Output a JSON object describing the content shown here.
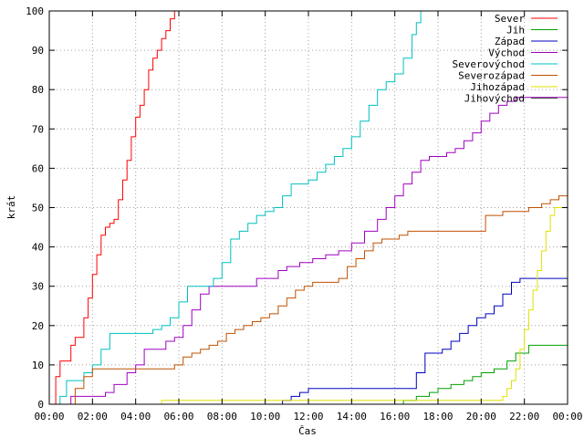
{
  "chart_data": {
    "type": "line",
    "xlabel": "Čas",
    "ylabel": "krát",
    "xlim": [
      0,
      24
    ],
    "ylim": [
      0,
      100
    ],
    "grid": true,
    "legend_position": "top-right",
    "x_ticks": [
      {
        "value": 0,
        "label": "00:00"
      },
      {
        "value": 2,
        "label": "02:00"
      },
      {
        "value": 4,
        "label": "04:00"
      },
      {
        "value": 6,
        "label": "06:00"
      },
      {
        "value": 8,
        "label": "08:00"
      },
      {
        "value": 10,
        "label": "10:00"
      },
      {
        "value": 12,
        "label": "12:00"
      },
      {
        "value": 14,
        "label": "14:00"
      },
      {
        "value": 16,
        "label": "16:00"
      },
      {
        "value": 18,
        "label": "18:00"
      },
      {
        "value": 20,
        "label": "20:00"
      },
      {
        "value": 22,
        "label": "22:00"
      },
      {
        "value": 24,
        "label": "00:00"
      }
    ],
    "y_ticks": [
      0,
      10,
      20,
      30,
      40,
      50,
      60,
      70,
      80,
      90,
      100
    ],
    "series": [
      {
        "name": "Sever",
        "color": "#ff0000",
        "x": [
          0,
          0.3,
          0.5,
          0.8,
          1.0,
          1.2,
          1.4,
          1.6,
          1.8,
          2.0,
          2.2,
          2.4,
          2.6,
          2.8,
          3.0,
          3.2,
          3.4,
          3.6,
          3.8,
          4.0,
          4.2,
          4.4,
          4.6,
          4.8,
          5.0,
          5.2,
          5.4,
          5.6,
          5.8
        ],
        "y": [
          0,
          7,
          11,
          11,
          15,
          17,
          17,
          22,
          27,
          33,
          38,
          43,
          45,
          46,
          47,
          52,
          57,
          62,
          68,
          73,
          76,
          80,
          85,
          88,
          90,
          93,
          95,
          98,
          100
        ]
      },
      {
        "name": "Jih",
        "color": "#00a000",
        "x": [
          0,
          16.2,
          16.4,
          17.0,
          17.6,
          18.0,
          18.6,
          19.2,
          19.6,
          20.0,
          20.6,
          21.2,
          21.6,
          22.2,
          23.0,
          24.0
        ],
        "y": [
          0,
          0,
          1,
          2,
          3,
          4,
          5,
          6,
          7,
          8,
          9,
          11,
          13,
          15,
          15,
          15
        ]
      },
      {
        "name": "Západ",
        "color": "#0000c0",
        "x": [
          0,
          10.6,
          10.8,
          11.2,
          11.6,
          12.0,
          13.0,
          14.0,
          15.0,
          16.0,
          16.8,
          17.0,
          17.4,
          17.8,
          18.2,
          18.6,
          19.0,
          19.4,
          19.8,
          20.2,
          20.6,
          21.0,
          21.4,
          21.8,
          22.4,
          24.0
        ],
        "y": [
          0,
          0,
          1,
          2,
          3,
          4,
          4,
          4,
          4,
          4,
          4,
          8,
          13,
          13,
          14,
          16,
          18,
          20,
          22,
          23,
          25,
          28,
          31,
          32,
          32,
          32
        ]
      },
      {
        "name": "Východ",
        "color": "#a000c0",
        "x": [
          0,
          0.8,
          1.0,
          2.0,
          2.6,
          3.0,
          3.6,
          4.0,
          4.4,
          5.0,
          5.4,
          5.8,
          6.2,
          6.6,
          7.0,
          7.4,
          7.8,
          8.4,
          9.0,
          9.6,
          10.0,
          10.6,
          11.0,
          11.6,
          12.2,
          12.8,
          13.4,
          14.0,
          14.6,
          15.2,
          15.6,
          16.0,
          16.4,
          16.8,
          17.2,
          17.6,
          18.0,
          18.4,
          18.8,
          19.2,
          19.6,
          20.0,
          20.4,
          20.8,
          21.2,
          21.6,
          22.0,
          22.4,
          22.8,
          23.2,
          23.6,
          24.0
        ],
        "y": [
          0,
          0,
          2,
          2,
          3,
          5,
          8,
          10,
          14,
          14,
          16,
          17,
          20,
          24,
          28,
          30,
          30,
          30,
          30,
          32,
          32,
          34,
          35,
          36,
          37,
          38,
          39,
          41,
          44,
          47,
          50,
          53,
          56,
          59,
          62,
          63,
          63,
          64,
          65,
          67,
          69,
          72,
          74,
          76,
          77,
          78,
          78,
          78,
          78,
          78,
          78,
          82
        ]
      },
      {
        "name": "Severovýchod",
        "color": "#00c0c0",
        "x": [
          0,
          0.5,
          0.8,
          1.2,
          1.6,
          2.0,
          2.4,
          2.8,
          3.2,
          3.6,
          4.0,
          4.4,
          4.8,
          5.2,
          5.6,
          6.0,
          6.4,
          6.8,
          7.2,
          7.6,
          8.0,
          8.4,
          8.8,
          9.2,
          9.6,
          10.0,
          10.4,
          10.8,
          11.2,
          11.6,
          12.0,
          12.4,
          12.8,
          13.2,
          13.6,
          14.0,
          14.4,
          14.8,
          15.2,
          15.6,
          16.0,
          16.4,
          16.8,
          17.0,
          17.2
        ],
        "y": [
          0,
          2,
          6,
          6,
          8,
          10,
          14,
          18,
          18,
          18,
          18,
          18,
          19,
          20,
          22,
          26,
          30,
          30,
          30,
          32,
          36,
          42,
          44,
          46,
          48,
          49,
          50,
          53,
          56,
          56,
          57,
          59,
          61,
          63,
          65,
          68,
          72,
          76,
          80,
          82,
          84,
          88,
          94,
          97,
          100
        ]
      },
      {
        "name": "Severozápad",
        "color": "#c05000",
        "x": [
          0,
          0.9,
          1.2,
          1.6,
          2.0,
          3.0,
          4.0,
          5.0,
          5.8,
          6.2,
          6.6,
          7.0,
          7.4,
          7.8,
          8.2,
          8.6,
          9.0,
          9.4,
          9.8,
          10.2,
          10.6,
          11.0,
          11.4,
          11.8,
          12.2,
          12.6,
          13.0,
          13.4,
          13.8,
          14.2,
          14.6,
          15.0,
          15.4,
          15.8,
          16.2,
          16.6,
          17.0,
          17.6,
          18.2,
          18.8,
          19.4,
          20.0,
          20.2,
          21.0,
          21.6,
          22.2,
          22.8,
          23.2,
          23.6,
          24.0
        ],
        "y": [
          0,
          0,
          4,
          7,
          9,
          9,
          9,
          9,
          10,
          12,
          13,
          14,
          15,
          16,
          18,
          19,
          20,
          21,
          22,
          23,
          25,
          27,
          29,
          30,
          31,
          31,
          31,
          32,
          35,
          37,
          39,
          41,
          42,
          42,
          43,
          44,
          44,
          44,
          44,
          44,
          44,
          44,
          48,
          49,
          49,
          50,
          51,
          52,
          53,
          55
        ]
      },
      {
        "name": "Jihozápad",
        "color": "#e0e000",
        "x": [
          0,
          5.0,
          5.2,
          6.0,
          8.0,
          10.0,
          12.0,
          14.0,
          16.0,
          18.0,
          20.0,
          20.8,
          21.0,
          21.2,
          21.4,
          21.6,
          21.8,
          22.0,
          22.2,
          22.4,
          22.6,
          22.8,
          23.0,
          23.2,
          23.4,
          24.0
        ],
        "y": [
          0,
          0,
          1,
          1,
          1,
          1,
          1,
          1,
          1,
          1,
          1,
          1,
          2,
          4,
          6,
          9,
          14,
          19,
          24,
          29,
          34,
          39,
          44,
          48,
          50,
          50
        ]
      },
      {
        "name": "Jihovýchod",
        "color": "#404040",
        "x": [],
        "y": []
      }
    ]
  }
}
